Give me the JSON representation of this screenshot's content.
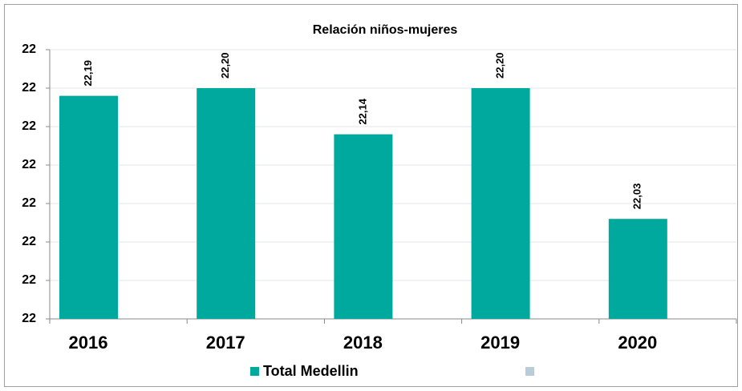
{
  "chart_data": {
    "type": "bar",
    "title": "Relación niños-mujeres",
    "categories": [
      "2016",
      "2017",
      "2018",
      "2019",
      "2020"
    ],
    "series": [
      {
        "name": "Total Medellin",
        "color": "#00a99d",
        "values": [
          22.19,
          22.2,
          22.14,
          22.2,
          22.03
        ],
        "value_labels": [
          "22,19",
          "22,20",
          "22,14",
          "22,20",
          "22,03"
        ]
      }
    ],
    "ylim": [
      21.9,
      22.25
    ],
    "yticks": [
      {
        "value": 21.9,
        "label": "22"
      },
      {
        "value": 21.95,
        "label": "22"
      },
      {
        "value": 22.0,
        "label": "22"
      },
      {
        "value": 22.05,
        "label": "22"
      },
      {
        "value": 22.1,
        "label": "22"
      },
      {
        "value": 22.15,
        "label": "22"
      },
      {
        "value": 22.2,
        "label": "22"
      },
      {
        "value": 22.25,
        "label": "22"
      }
    ],
    "grid": true
  }
}
